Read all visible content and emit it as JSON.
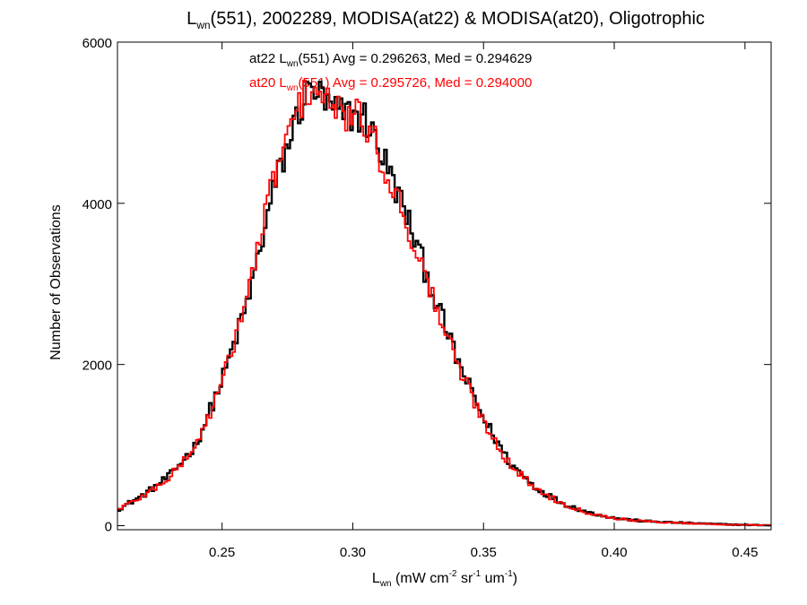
{
  "chart_data": {
    "type": "histogram",
    "title": {
      "prefix": "L",
      "sub": "wn",
      "rest": "(551), 2002289, MODISA(at22) & MODISA(at20), Oligotrophic"
    },
    "xlabel": {
      "base": "L",
      "sub": "wn",
      "open": " (mW cm",
      "sup1": "-2",
      "mid1": " sr",
      "sup2": "-1",
      "mid2": " um",
      "sup3": "-1",
      "close": ")"
    },
    "ylabel": "Number of Observations",
    "xlim": [
      0.21,
      0.46
    ],
    "ylim": [
      -50,
      6000
    ],
    "xticks": [
      0.25,
      0.3,
      0.35,
      0.4,
      0.45
    ],
    "xtick_labels": [
      "0.25",
      "0.30",
      "0.35",
      "0.40",
      "0.45"
    ],
    "yticks": [
      0,
      2000,
      4000,
      6000
    ],
    "ytick_labels": [
      "0",
      "2000",
      "4000",
      "6000"
    ],
    "grid": false,
    "legend_placement": "top-center",
    "series": [
      {
        "name": "at22",
        "color": "#000000",
        "stats": {
          "pre": "at22 L",
          "sub": "wn",
          "post": "(551) Avg = 0.296263, Med = 0.294629"
        },
        "profile": {
          "x": [
            0.21,
            0.22,
            0.23,
            0.24,
            0.25,
            0.26,
            0.27,
            0.28,
            0.285,
            0.29,
            0.295,
            0.3,
            0.305,
            0.31,
            0.32,
            0.33,
            0.34,
            0.35,
            0.36,
            0.37,
            0.38,
            0.39,
            0.4,
            0.41,
            0.42,
            0.43,
            0.44,
            0.45,
            0.46
          ],
          "y": [
            200,
            380,
            620,
            1000,
            1800,
            2800,
            4200,
            5200,
            5450,
            5200,
            5100,
            5100,
            5050,
            4700,
            3900,
            2950,
            2050,
            1330,
            780,
            470,
            280,
            165,
            95,
            60,
            42,
            30,
            18,
            10,
            5
          ]
        }
      },
      {
        "name": "at20",
        "color": "#ff0000",
        "stats": {
          "pre": "at20 L",
          "sub": "wn",
          "post": "(551) Avg = 0.295726, Med = 0.294000"
        },
        "profile": {
          "x": [
            0.21,
            0.22,
            0.23,
            0.24,
            0.25,
            0.26,
            0.27,
            0.28,
            0.285,
            0.29,
            0.295,
            0.3,
            0.305,
            0.31,
            0.32,
            0.33,
            0.34,
            0.35,
            0.36,
            0.37,
            0.38,
            0.39,
            0.4,
            0.41,
            0.42,
            0.43,
            0.44,
            0.45,
            0.46
          ],
          "y": [
            200,
            370,
            600,
            990,
            1760,
            2900,
            4350,
            5250,
            5480,
            5230,
            5120,
            5080,
            5000,
            4620,
            3820,
            2880,
            2000,
            1300,
            760,
            460,
            275,
            160,
            92,
            58,
            40,
            28,
            17,
            9,
            5
          ]
        }
      }
    ]
  }
}
